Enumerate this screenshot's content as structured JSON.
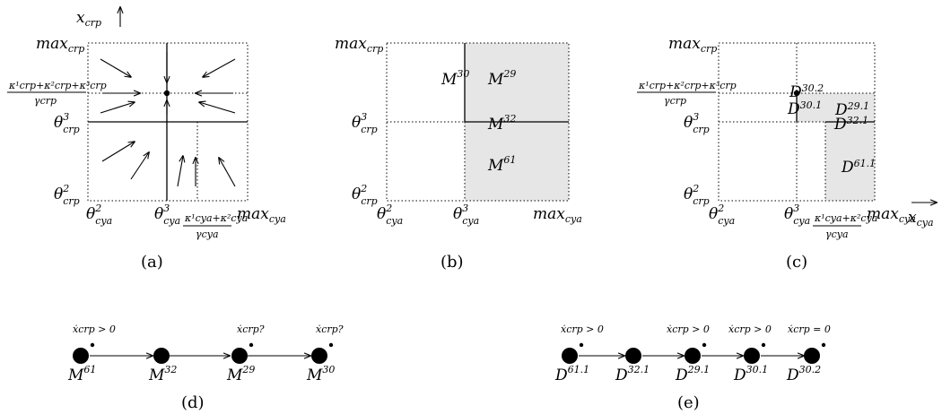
{
  "panels": {
    "a": {
      "caption": "(a)",
      "y_axis_var": "x",
      "y_axis_sub": "crp",
      "max_crp": "max",
      "max_crp_sub": "crp",
      "frac_crp_num": "κ¹crp+κ²crp+κ³crp",
      "frac_crp_den": "γcrp",
      "theta3_crp": "θ",
      "theta3_crp_sup": "3",
      "theta3_crp_sub": "crp",
      "theta2_crp": "θ",
      "theta2_crp_sup": "2",
      "theta2_crp_sub": "crp",
      "theta2_cya": "θ",
      "theta2_cya_sup": "2",
      "theta2_cya_sub": "cya",
      "theta3_cya": "θ",
      "theta3_cya_sup": "3",
      "theta3_cya_sub": "cya",
      "frac_cya_num": "κ¹cya+κ²cya",
      "frac_cya_den": "γcya",
      "max_cya": "max",
      "max_cya_sub": "cya"
    },
    "b": {
      "caption": "(b)",
      "max_crp": "max",
      "max_crp_sub": "crp",
      "theta3_crp_sub": "crp",
      "theta2_crp_sub": "crp",
      "theta2_cya_sub": "cya",
      "theta3_cya_sub": "cya",
      "max_cya": "max",
      "max_cya_sub": "cya",
      "regions": [
        {
          "name": "M",
          "sup": "30"
        },
        {
          "name": "M",
          "sup": "29"
        },
        {
          "name": "M",
          "sup": "32"
        },
        {
          "name": "M",
          "sup": "61"
        }
      ]
    },
    "c": {
      "caption": "(c)",
      "max_crp": "max",
      "max_crp_sub": "crp",
      "frac_crp_num": "κ¹crp+κ²crp+κ³crp",
      "frac_crp_den": "γcrp",
      "theta3_crp_sub": "crp",
      "theta2_crp_sub": "crp",
      "theta2_cya_sub": "cya",
      "theta3_cya_sub": "cya",
      "frac_cya_num": "κ¹cya+κ²cya",
      "frac_cya_den": "γcya",
      "max_cya": "max",
      "max_cya_sub": "cya",
      "x_axis_var": "x",
      "x_axis_sub": "cya",
      "regions": [
        {
          "name": "D",
          "sup": "30.2"
        },
        {
          "name": "D",
          "sup": "30.1"
        },
        {
          "name": "D",
          "sup": "29.1"
        },
        {
          "name": "D",
          "sup": "32.1"
        },
        {
          "name": "D",
          "sup": "61.1"
        }
      ]
    },
    "d": {
      "caption": "(d)",
      "nodes": [
        {
          "name": "M",
          "sup": "61",
          "annot": "ẋcrp > 0"
        },
        {
          "name": "M",
          "sup": "32",
          "annot": ""
        },
        {
          "name": "M",
          "sup": "29",
          "annot": "ẋcrp?"
        },
        {
          "name": "M",
          "sup": "30",
          "annot": "ẋcrp?"
        }
      ]
    },
    "e": {
      "caption": "(e)",
      "nodes": [
        {
          "name": "D",
          "sup": "61.1",
          "annot": "ẋcrp > 0"
        },
        {
          "name": "D",
          "sup": "32.1",
          "annot": ""
        },
        {
          "name": "D",
          "sup": "29.1",
          "annot": "ẋcrp > 0"
        },
        {
          "name": "D",
          "sup": "30.1",
          "annot": "ẋcrp > 0"
        },
        {
          "name": "D",
          "sup": "30.2",
          "annot": "ẋcrp = 0"
        }
      ]
    }
  }
}
